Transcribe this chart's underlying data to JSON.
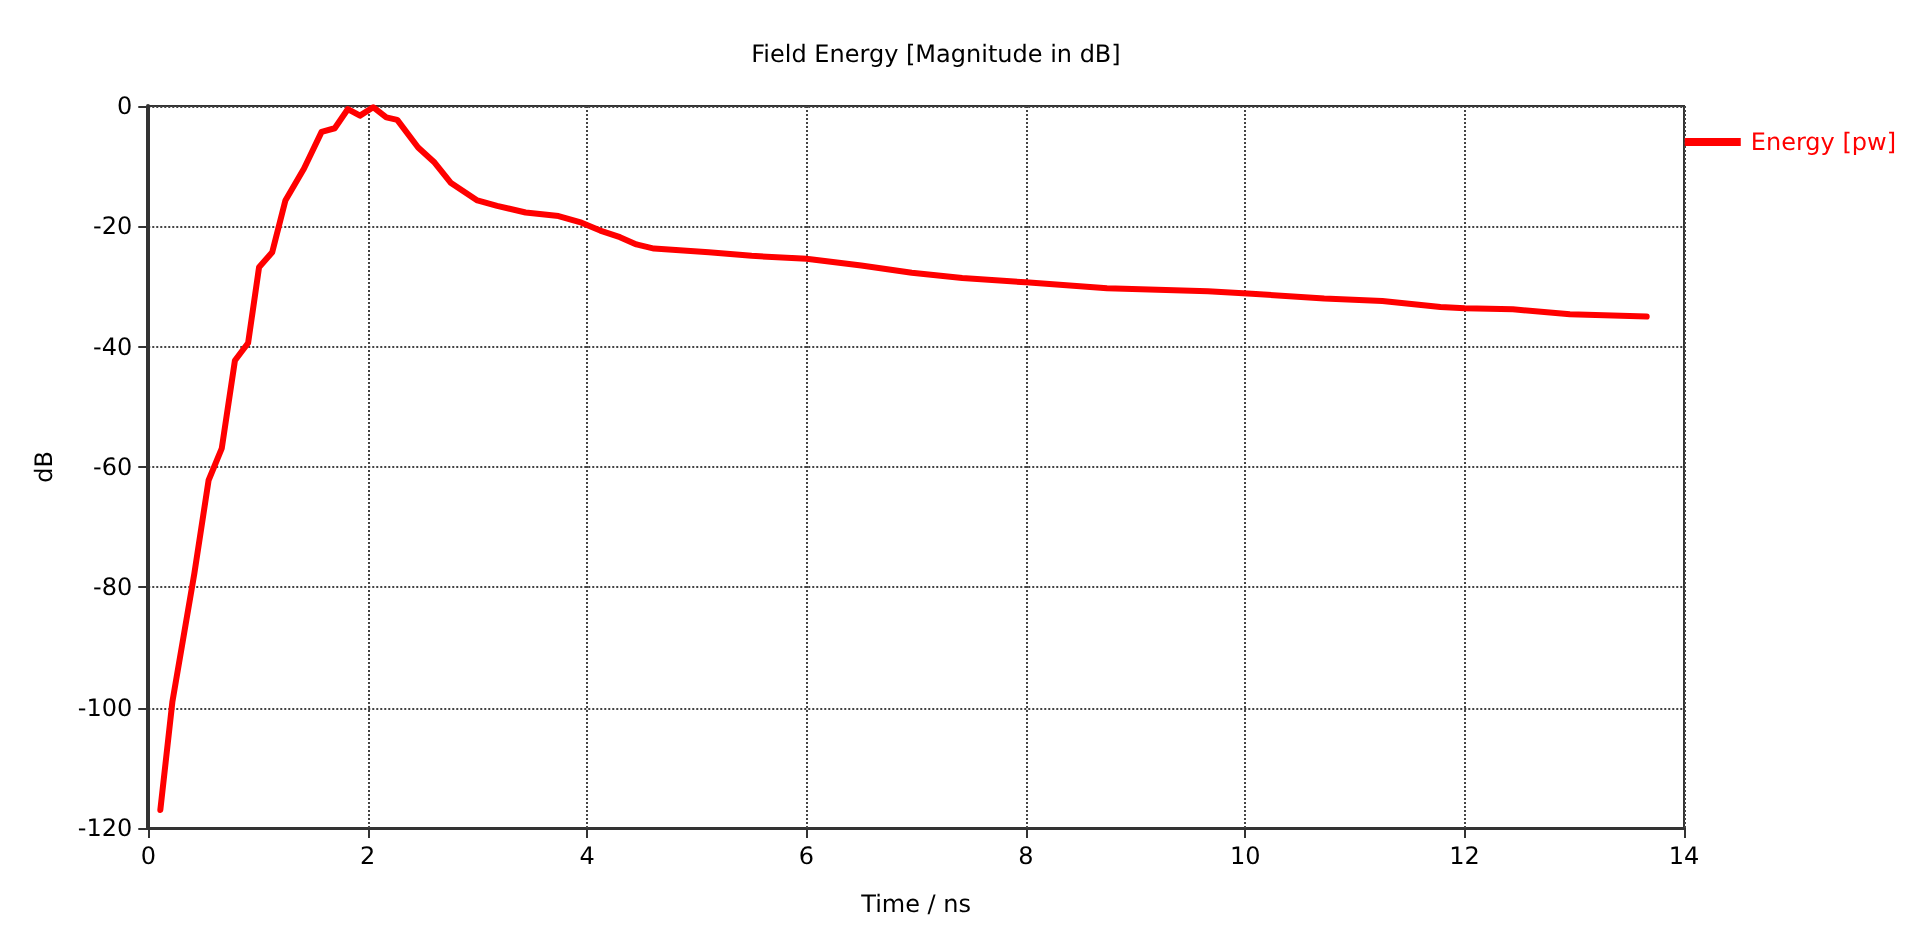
{
  "chart_data": {
    "type": "line",
    "title": "Field Energy [Magnitude in dB]",
    "xlabel": "Time / ns",
    "ylabel": "dB",
    "xlim": [
      0,
      14
    ],
    "xticks": [
      0,
      2,
      4,
      6,
      8,
      10,
      12,
      14
    ],
    "ylim": [
      -120,
      0
    ],
    "yticks": [
      -120,
      -100,
      -80,
      -60,
      -40,
      -20,
      0
    ],
    "grid": true,
    "legend": "top right",
    "marker": "none",
    "line_style": "solid",
    "series": [
      {
        "name": "Energy [pw]",
        "color": "#ff0000",
        "x": [
          0.11,
          0.22,
          0.28,
          0.42,
          0.55,
          0.67,
          0.79,
          0.91,
          1.01,
          1.13,
          1.25,
          1.42,
          1.58,
          1.7,
          1.82,
          1.93,
          2.05,
          2.17,
          2.27,
          2.46,
          2.61,
          2.76,
          3.0,
          3.18,
          3.44,
          3.74,
          3.95,
          4.12,
          4.3,
          4.45,
          4.61,
          5.11,
          5.5,
          6.0,
          6.5,
          6.96,
          7.42,
          8.0,
          8.74,
          9.66,
          10.06,
          10.72,
          11.25,
          11.78,
          12.0,
          12.44,
          12.96,
          13.66
        ],
        "values": [
          -117,
          -99,
          -92.6,
          -77.7,
          -62.2,
          -56.9,
          -42.3,
          -39.4,
          -26.8,
          -24.3,
          -15.7,
          -10.4,
          -4.3,
          -3.7,
          -0.5,
          -1.6,
          -0.2,
          -1.9,
          -2.3,
          -6.9,
          -9.4,
          -12.8,
          -15.7,
          -16.6,
          -17.7,
          -18.3,
          -19.4,
          -20.7,
          -21.8,
          -23,
          -23.7,
          -24.3,
          -24.9,
          -25.4,
          -26.5,
          -27.7,
          -28.6,
          -29.3,
          -30.3,
          -30.8,
          -31.2,
          -32,
          -32.4,
          -33.4,
          -33.6,
          -33.8,
          -34.6,
          -35
        ]
      }
    ]
  }
}
